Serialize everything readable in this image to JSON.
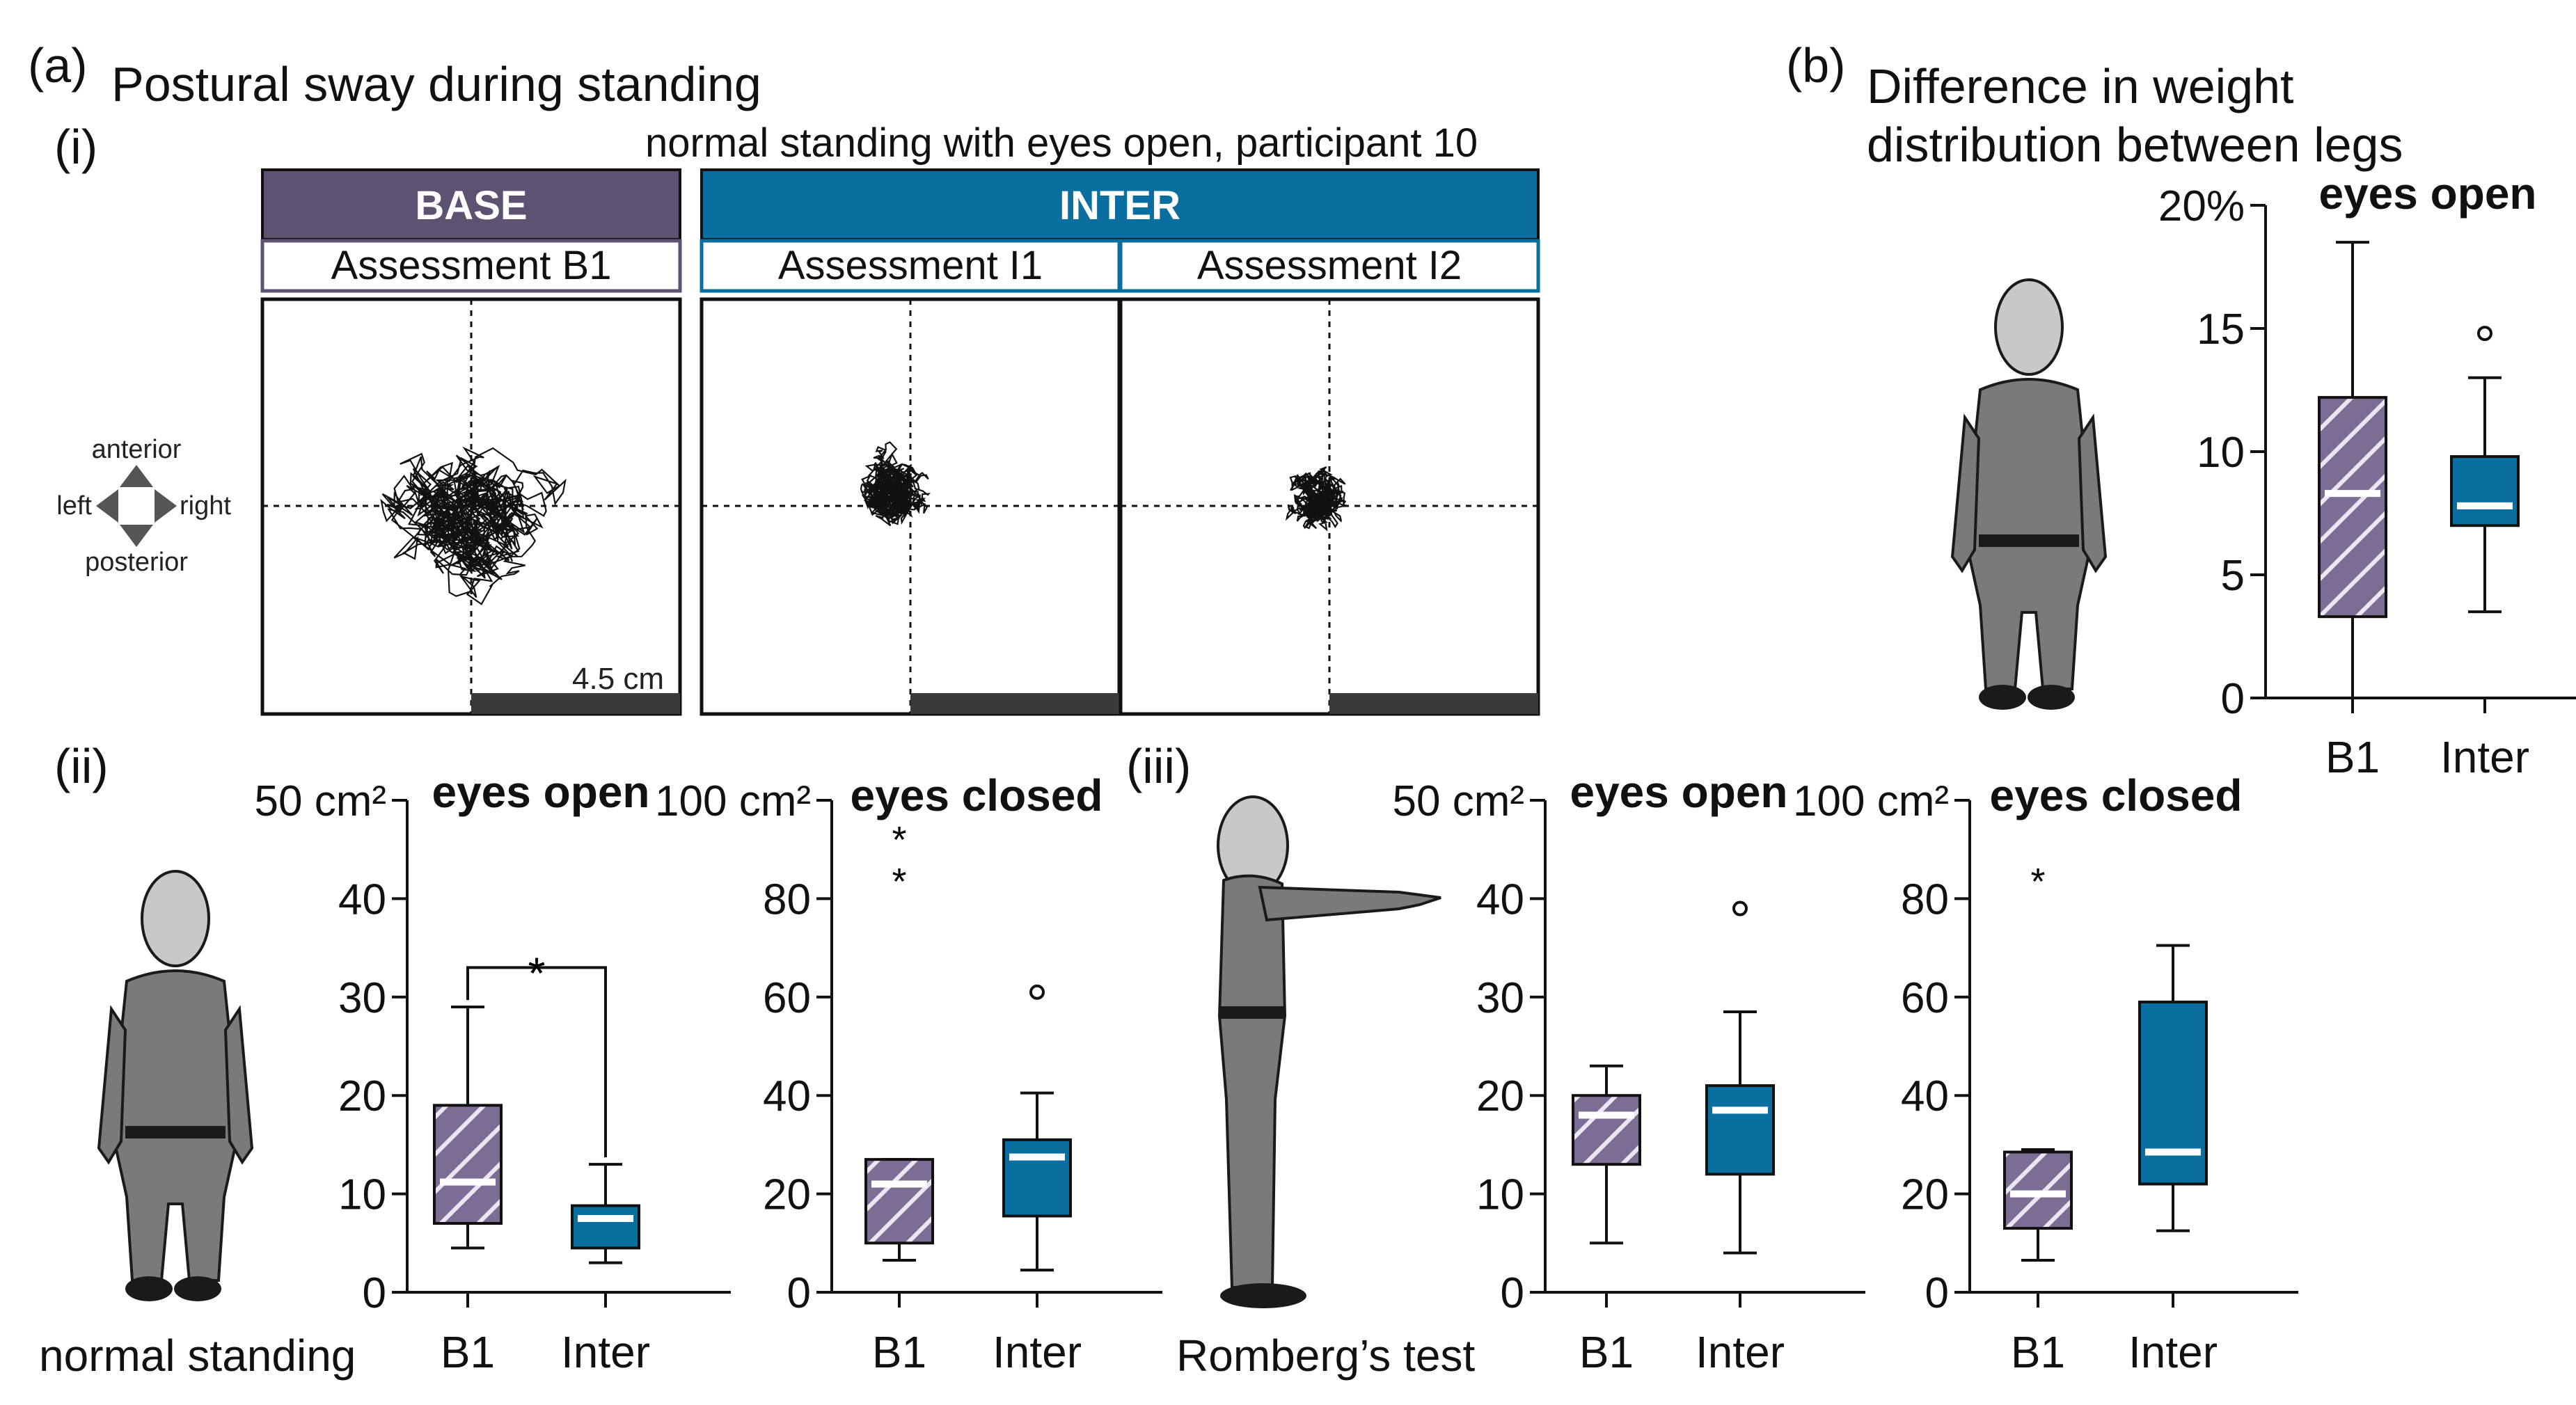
{
  "colors": {
    "base": "#5e5273",
    "inter": "#0a6f9e",
    "base_hatch": "#7c6d94",
    "base_light": "#ebe7f1"
  },
  "panel_a": {
    "label": "(a)",
    "title": "Postural sway during standing",
    "sub_i": "(i)",
    "condition": "normal standing with eyes open, participant 10",
    "header_base": "BASE",
    "header_inter": "INTER",
    "assess_b1": "Assessment B1",
    "assess_i1": "Assessment I1",
    "assess_i2": "Assessment I2",
    "scale": "4.5 cm",
    "dir_anterior": "anterior",
    "dir_posterior": "posterior",
    "dir_left": "left",
    "dir_right": "right",
    "sub_ii": "(ii)",
    "sub_iii": "(iii)",
    "caption_ii": "normal standing",
    "caption_iii": "Romberg’s test"
  },
  "panel_b": {
    "label": "(b)",
    "title_line1": "Difference in weight",
    "title_line2": "distribution between legs"
  },
  "chart_data": [
    {
      "id": "weight",
      "type": "box",
      "title": "eyes open",
      "categories": [
        "B1",
        "Inter"
      ],
      "ylim": [
        0,
        20
      ],
      "yticks": [
        "0",
        "5",
        "10",
        "15",
        "20%"
      ],
      "boxes": [
        {
          "min": 0,
          "q1": 3.3,
          "median": 8.3,
          "q3": 12.2,
          "max": 18.5
        },
        {
          "min": 3.5,
          "q1": 7.0,
          "median": 7.8,
          "q3": 9.8,
          "max": 13.0
        }
      ],
      "outliers": [
        {
          "cat": 1,
          "value": 14.8,
          "marker": "o"
        }
      ]
    },
    {
      "id": "ns_open",
      "type": "box",
      "title": "eyes open",
      "categories": [
        "B1",
        "Inter"
      ],
      "ylim": [
        0,
        50
      ],
      "yticks": [
        "0",
        "10",
        "20",
        "30",
        "40",
        "50 cm²"
      ],
      "boxes": [
        {
          "min": 4.5,
          "q1": 7,
          "median": 11.2,
          "q3": 19,
          "max": 29
        },
        {
          "min": 3,
          "q1": 4.5,
          "median": 7.5,
          "q3": 8.8,
          "max": 13
        }
      ],
      "outliers": [],
      "significance": {
        "label": "*",
        "y": 33
      }
    },
    {
      "id": "ns_closed",
      "type": "box",
      "title": "eyes closed",
      "categories": [
        "B1",
        "Inter"
      ],
      "ylim": [
        0,
        100
      ],
      "yticks": [
        "0",
        "20",
        "40",
        "60",
        "80",
        "100 cm²"
      ],
      "boxes": [
        {
          "min": 6.5,
          "q1": 10,
          "median": 22,
          "q3": 27,
          "max": 27
        },
        {
          "min": 4.5,
          "q1": 15.5,
          "median": 27.5,
          "q3": 31,
          "max": 40.5
        }
      ],
      "outliers": [
        {
          "cat": 0,
          "value": 92.5,
          "marker": "*"
        },
        {
          "cat": 0,
          "value": 84,
          "marker": "*"
        },
        {
          "cat": 1,
          "value": 61,
          "marker": "o"
        }
      ]
    },
    {
      "id": "rb_open",
      "type": "box",
      "title": "eyes open",
      "categories": [
        "B1",
        "Inter"
      ],
      "ylim": [
        0,
        50
      ],
      "yticks": [
        "0",
        "10",
        "20",
        "30",
        "40",
        "50 cm²"
      ],
      "boxes": [
        {
          "min": 5,
          "q1": 13,
          "median": 18,
          "q3": 20,
          "max": 23
        },
        {
          "min": 4,
          "q1": 12,
          "median": 18.5,
          "q3": 21,
          "max": 28.5
        }
      ],
      "outliers": [
        {
          "cat": 1,
          "value": 39,
          "marker": "o"
        }
      ]
    },
    {
      "id": "rb_closed",
      "type": "box",
      "title": "eyes closed",
      "categories": [
        "B1",
        "Inter"
      ],
      "ylim": [
        0,
        100
      ],
      "yticks": [
        "0",
        "20",
        "40",
        "60",
        "80",
        "100 cm²"
      ],
      "boxes": [
        {
          "min": 6.5,
          "q1": 13,
          "median": 20,
          "q3": 28.5,
          "max": 29
        },
        {
          "min": 12.5,
          "q1": 22,
          "median": 28.5,
          "q3": 59,
          "max": 70.5
        }
      ],
      "outliers": [
        {
          "cat": 0,
          "value": 84,
          "marker": "*"
        }
      ]
    }
  ]
}
